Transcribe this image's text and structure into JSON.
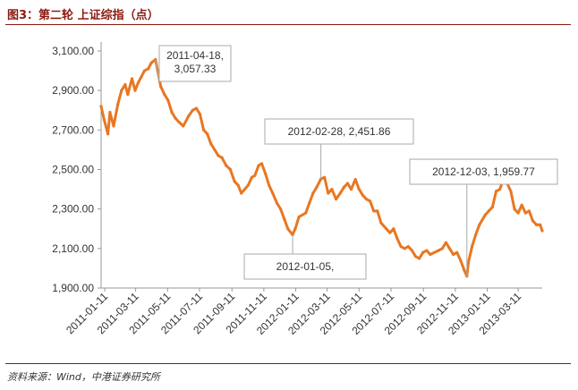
{
  "figure_title": "图3：第二轮 上证综指（点）",
  "source": "资料来源：Wind，中港证券研究所",
  "colors": {
    "line": "#E87722",
    "accent": "#8B1A10",
    "axis": "#999999"
  },
  "chart_data": {
    "type": "line",
    "ylim": [
      1900,
      3100
    ],
    "yticks": [
      "3,100.00",
      "2,900.00",
      "2,700.00",
      "2,500.00",
      "2,300.00",
      "2,100.00",
      "1,900.00"
    ],
    "ytick_values": [
      3100,
      2900,
      2700,
      2500,
      2300,
      2100,
      1900
    ],
    "xlim": [
      "2011-01-04",
      "2013-04-26"
    ],
    "xticks": [
      "2011-01-11",
      "2011-03-11",
      "2011-05-11",
      "2011-07-11",
      "2011-09-11",
      "2011-11-11",
      "2012-01-11",
      "2012-03-11",
      "2012-05-11",
      "2012-07-11",
      "2012-09-11",
      "2012-11-11",
      "2013-01-11",
      "2013-03-11"
    ],
    "grid": false,
    "series": [
      {
        "x": [
          "2011-01-04",
          "2011-01-10",
          "2011-01-17",
          "2011-01-21",
          "2011-01-28",
          "2011-02-05",
          "2011-02-12",
          "2011-02-19",
          "2011-02-24",
          "2011-03-04",
          "2011-03-10",
          "2011-03-16",
          "2011-03-22",
          "2011-03-28",
          "2011-04-04",
          "2011-04-10",
          "2011-04-18",
          "2011-04-22",
          "2011-04-28",
          "2011-05-05",
          "2011-05-12",
          "2011-05-19",
          "2011-05-26",
          "2011-06-02",
          "2011-06-10",
          "2011-06-20",
          "2011-06-28",
          "2011-07-05",
          "2011-07-12",
          "2011-07-19",
          "2011-07-26",
          "2011-08-02",
          "2011-08-09",
          "2011-08-16",
          "2011-08-23",
          "2011-08-31",
          "2011-09-08",
          "2011-09-16",
          "2011-09-23",
          "2011-09-29",
          "2011-10-12",
          "2011-10-19",
          "2011-10-25",
          "2011-11-01",
          "2011-11-07",
          "2011-11-14",
          "2011-11-21",
          "2011-11-28",
          "2011-12-06",
          "2011-12-13",
          "2011-12-20",
          "2011-12-27",
          "2012-01-05",
          "2012-01-10",
          "2012-01-17",
          "2012-01-30",
          "2012-02-06",
          "2012-02-13",
          "2012-02-20",
          "2012-02-28",
          "2012-03-06",
          "2012-03-13",
          "2012-03-20",
          "2012-03-28",
          "2012-04-05",
          "2012-04-12",
          "2012-04-19",
          "2012-04-26",
          "2012-05-04",
          "2012-05-11",
          "2012-05-18",
          "2012-05-25",
          "2012-06-01",
          "2012-06-08",
          "2012-06-15",
          "2012-06-22",
          "2012-07-02",
          "2012-07-09",
          "2012-07-16",
          "2012-07-23",
          "2012-07-30",
          "2012-08-06",
          "2012-08-13",
          "2012-08-20",
          "2012-08-27",
          "2012-09-03",
          "2012-09-10",
          "2012-09-17",
          "2012-09-24",
          "2012-10-10",
          "2012-10-17",
          "2012-10-24",
          "2012-10-31",
          "2012-11-07",
          "2012-11-14",
          "2012-11-21",
          "2012-11-28",
          "2012-12-03",
          "2012-12-06",
          "2012-12-13",
          "2012-12-20",
          "2012-12-27",
          "2013-01-07",
          "2013-01-14",
          "2013-01-21",
          "2013-01-28",
          "2013-02-04",
          "2013-02-08",
          "2013-02-18",
          "2013-02-25",
          "2013-03-04",
          "2013-03-11",
          "2013-03-18",
          "2013-03-25",
          "2013-04-01",
          "2013-04-08",
          "2013-04-15",
          "2013-04-22",
          "2013-04-26"
        ],
        "y": [
          2820,
          2750,
          2680,
          2790,
          2720,
          2830,
          2900,
          2930,
          2880,
          2960,
          2900,
          2940,
          2970,
          3000,
          3010,
          3040,
          3057,
          3000,
          2920,
          2880,
          2850,
          2790,
          2760,
          2740,
          2720,
          2770,
          2800,
          2810,
          2780,
          2700,
          2680,
          2630,
          2600,
          2570,
          2560,
          2520,
          2500,
          2440,
          2420,
          2380,
          2420,
          2460,
          2470,
          2520,
          2530,
          2480,
          2420,
          2380,
          2330,
          2300,
          2250,
          2200,
          2170,
          2200,
          2260,
          2280,
          2330,
          2380,
          2410,
          2452,
          2460,
          2380,
          2400,
          2350,
          2380,
          2410,
          2430,
          2400,
          2450,
          2400,
          2370,
          2350,
          2340,
          2290,
          2290,
          2230,
          2200,
          2180,
          2200,
          2150,
          2110,
          2100,
          2110,
          2090,
          2060,
          2050,
          2080,
          2090,
          2070,
          2090,
          2100,
          2130,
          2100,
          2070,
          2080,
          2040,
          1990,
          1960,
          2030,
          2110,
          2170,
          2220,
          2270,
          2290,
          2310,
          2390,
          2400,
          2430,
          2430,
          2390,
          2300,
          2280,
          2320,
          2280,
          2290,
          2240,
          2220,
          2220,
          2190
        ]
      }
    ],
    "annotations": [
      {
        "label": "2011-04-18,\n3,057.33",
        "x": "2011-04-18",
        "y": 3057.33
      },
      {
        "label": "2012-02-28, 2,451.86",
        "x": "2012-02-28",
        "y": 2451.86
      },
      {
        "label": "2012-01-05,",
        "x": "2012-01-05",
        "y": 2170
      },
      {
        "label": "2012-12-03, 1,959.77",
        "x": "2012-12-03",
        "y": 1959.77
      }
    ]
  }
}
